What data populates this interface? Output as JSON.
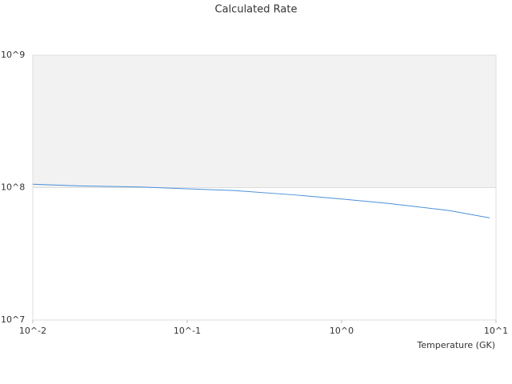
{
  "chart_data": {
    "type": "line",
    "title": "Calculated Rate",
    "x_label": "Temperature (GK)",
    "log_x": true,
    "log_y": true,
    "x": [
      0.01,
      0.02,
      0.05,
      0.1,
      0.2,
      0.5,
      1,
      2,
      5,
      9.1
    ],
    "series": [
      {
        "color": "#4a90d9",
        "values": [
          106000000,
          103000000,
          101000000,
          98000000,
          95000000,
          88000000,
          82000000,
          76000000,
          67000000,
          59000000
        ]
      }
    ],
    "xlim": [
      0.01,
      10
    ],
    "ylim": [
      10000000,
      1000000000
    ],
    "xticks": [
      {
        "value": 0.01,
        "label": "10^-2"
      },
      {
        "value": 0.1,
        "label": "10^-1"
      },
      {
        "value": 1,
        "label": "10^0"
      },
      {
        "value": 10,
        "label": "10^1"
      }
    ],
    "yticks": [
      {
        "value": 10000000,
        "label": "10^7"
      },
      {
        "value": 100000000,
        "label": "10^8"
      },
      {
        "value": 1000000000,
        "label": "10^9"
      }
    ]
  }
}
